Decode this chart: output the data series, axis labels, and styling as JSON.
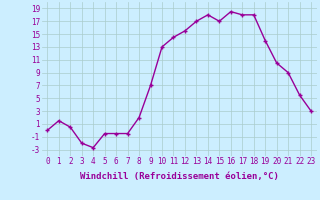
{
  "x": [
    0,
    1,
    2,
    3,
    4,
    5,
    6,
    7,
    8,
    9,
    10,
    11,
    12,
    13,
    14,
    15,
    16,
    17,
    18,
    19,
    20,
    21,
    22,
    23
  ],
  "y": [
    0,
    1.5,
    0.5,
    -2,
    -2.7,
    -0.5,
    -0.5,
    -0.5,
    2,
    7,
    13,
    14.5,
    15.5,
    17,
    18,
    17,
    18.5,
    18,
    18,
    14,
    10.5,
    9,
    5.5,
    3
  ],
  "line_color": "#990099",
  "marker": "+",
  "bg_color": "#cceeff",
  "grid_color": "#aacccc",
  "xlabel": "Windchill (Refroidissement éolien,°C)",
  "yticks": [
    -3,
    -1,
    1,
    3,
    5,
    7,
    9,
    11,
    13,
    15,
    17,
    19
  ],
  "xticks": [
    0,
    1,
    2,
    3,
    4,
    5,
    6,
    7,
    8,
    9,
    10,
    11,
    12,
    13,
    14,
    15,
    16,
    17,
    18,
    19,
    20,
    21,
    22,
    23
  ],
  "ylim": [
    -4,
    20
  ],
  "xlim": [
    -0.5,
    23.5
  ],
  "xlabel_fontsize": 6.5,
  "tick_fontsize": 5.5,
  "line_width": 1.0,
  "marker_size": 3.5,
  "text_color": "#990099"
}
